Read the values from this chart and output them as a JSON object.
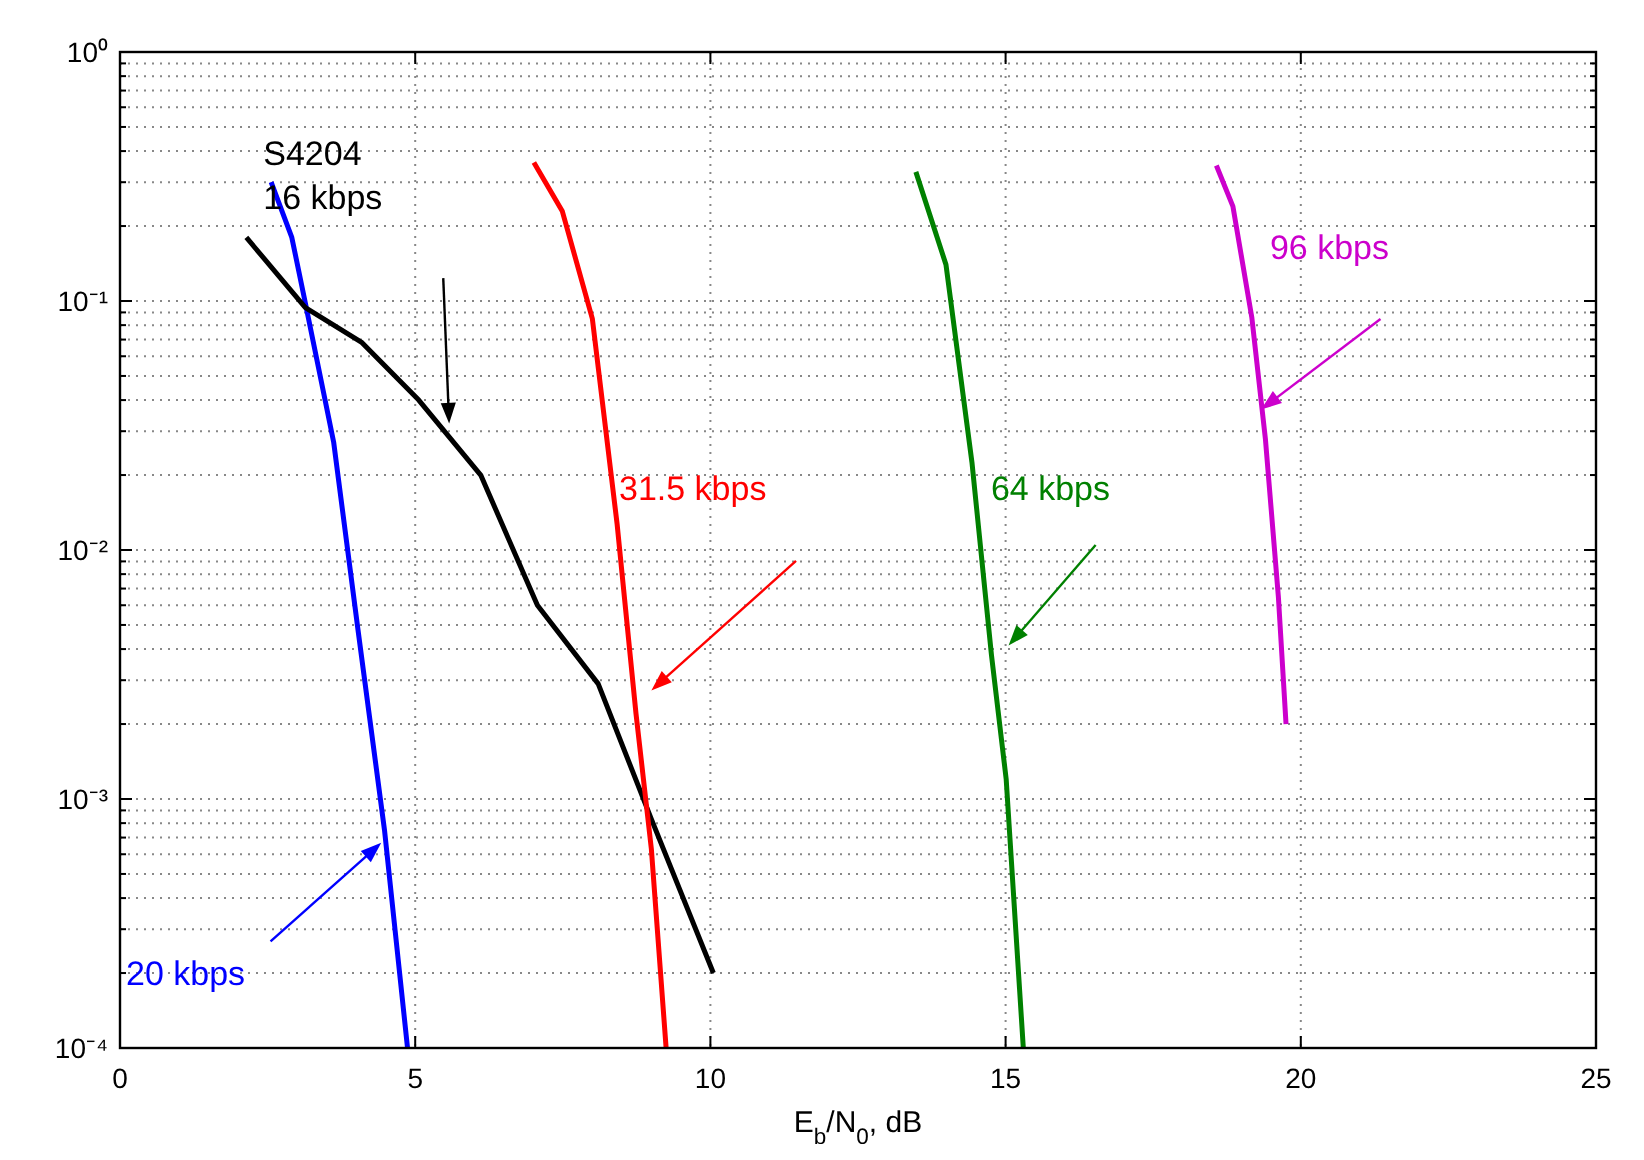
{
  "chart_data": {
    "type": "line",
    "xlabel": "E$_{b}$/N$_{0}$, dB",
    "xlim": [
      0,
      25
    ],
    "xticks": [
      0,
      5,
      10,
      15,
      20,
      25
    ],
    "ylim": [
      0.0001,
      1
    ],
    "yticks": [
      {
        "value": 0.0001,
        "label": "10⁻⁴"
      },
      {
        "value": 0.001,
        "label": "10⁻³"
      },
      {
        "value": 0.01,
        "label": "10⁻²"
      },
      {
        "value": 0.1,
        "label": "10⁻¹"
      },
      {
        "value": 1,
        "label": "10⁰"
      }
    ],
    "log": "y",
    "grid": true,
    "marker": "none",
    "line_style": "solid",
    "series": [
      {
        "color": "#0000ff",
        "x": [
          2.56,
          2.91,
          3.14,
          3.62,
          4.03,
          4.48,
          4.87
        ],
        "values": [
          0.3,
          0.18,
          0.098,
          0.027,
          0.0048,
          0.00075,
          0.0001
        ]
      },
      {
        "color": "#000000",
        "x": [
          2.14,
          3.14,
          4.1,
          5.06,
          6.11,
          7.07,
          8.1,
          9.0,
          10.05
        ],
        "values": [
          0.18,
          0.094,
          0.068,
          0.04,
          0.02,
          0.006,
          0.0029,
          0.00083,
          0.0002
        ]
      },
      {
        "color": "#ff0000",
        "x": [
          7.01,
          7.49,
          8.0,
          8.42,
          8.74,
          9.0,
          9.25
        ],
        "values": [
          0.36,
          0.23,
          0.085,
          0.0127,
          0.0022,
          0.00063,
          0.0001
        ]
      },
      {
        "color": "#008000",
        "x": [
          13.48,
          13.99,
          14.43,
          14.76,
          15.01,
          15.3
        ],
        "values": [
          0.33,
          0.14,
          0.0225,
          0.0038,
          0.0012,
          0.0001
        ]
      },
      {
        "color": "#cc00cc",
        "x": [
          18.57,
          18.85,
          19.17,
          19.4,
          19.62,
          19.75
        ],
        "values": [
          0.35,
          0.24,
          0.086,
          0.028,
          0.0065,
          0.002
        ]
      }
    ],
    "annotations": [
      "20 kbps",
      "S4204\n16 kbps",
      "31.5 kbps",
      "64 kbps",
      "96 kbps"
    ]
  }
}
